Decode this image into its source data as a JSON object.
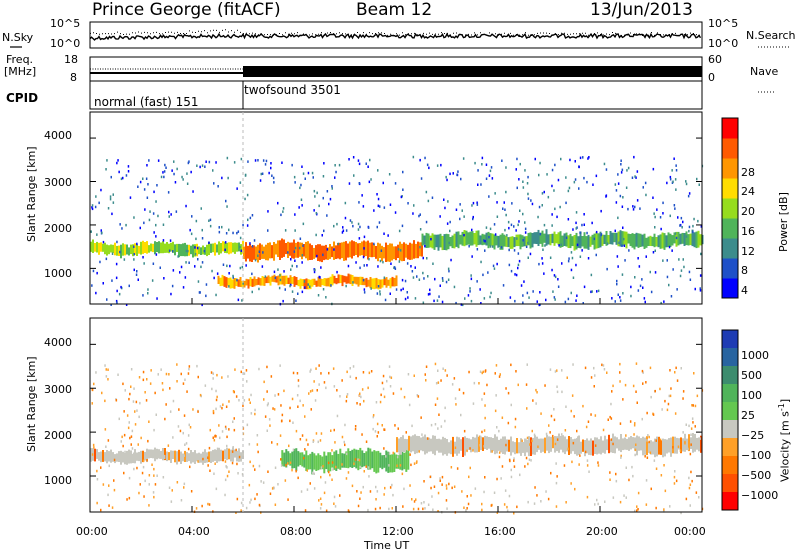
{
  "header": {
    "station": "Prince George (fitACF)",
    "beam": "Beam 12",
    "date": "13/Jun/2013"
  },
  "noise_panel": {
    "left_label": "N.Sky",
    "right_label": "N.Search",
    "left_ticks": [
      "10^5",
      "10^0"
    ],
    "right_ticks": [
      "10^5",
      "10^0"
    ]
  },
  "freq_panel": {
    "left_label": "Freq.",
    "left_unit": "[MHz]",
    "left_ticks": [
      "18",
      "8"
    ],
    "right_label": "Nave",
    "right_ticks": [
      "60",
      "0"
    ]
  },
  "cpid": {
    "label": "CPID",
    "segments": [
      {
        "name": "normal (fast) 151",
        "start_hour": 0,
        "end_hour": 6
      },
      {
        "name": "twofsound 3501",
        "start_hour": 6,
        "end_hour": 24
      }
    ]
  },
  "chart_data": [
    {
      "type": "heatmap",
      "name": "power",
      "ylabel": "Slant Range [km]",
      "ylim": [
        180,
        4600
      ],
      "yticks": [
        1000,
        2000,
        3000,
        4000
      ],
      "xlim": [
        0,
        24
      ],
      "colorbar": {
        "label": "Power [dB]",
        "ticks": [
          4,
          8,
          12,
          16,
          20,
          24,
          28
        ],
        "range": [
          0,
          32
        ],
        "colors": [
          "#0000ff",
          "#1e50c8",
          "#3c8c8c",
          "#50b45a",
          "#96dc1e",
          "#ffdc00",
          "#ff9600",
          "#ff5a00",
          "#ff0000"
        ]
      },
      "echo_bands": [
        {
          "start_hour": 0,
          "end_hour": 6,
          "range_center_km": 1450,
          "range_width_km": 250,
          "power_db": 18
        },
        {
          "start_hour": 6,
          "end_hour": 13,
          "range_center_km": 1400,
          "range_width_km": 350,
          "power_db": 28
        },
        {
          "start_hour": 5,
          "end_hour": 12,
          "range_center_km": 700,
          "range_width_km": 200,
          "power_db": 26
        },
        {
          "start_hour": 13,
          "end_hour": 24,
          "range_center_km": 1650,
          "range_width_km": 300,
          "power_db": 14
        }
      ]
    },
    {
      "type": "heatmap",
      "name": "velocity",
      "ylabel": "Slant Range [km]",
      "ylim": [
        180,
        4600
      ],
      "yticks": [
        1000,
        2000,
        3000,
        4000
      ],
      "xlim": [
        0,
        24
      ],
      "xticks": [
        "00:00",
        "04:00",
        "08:00",
        "12:00",
        "16:00",
        "20:00",
        "00:00"
      ],
      "xlabel": "Time UT",
      "colorbar": {
        "label": "Velocity",
        "unit": "[m s",
        "unit_superscript": "-1",
        "unit_close": "]",
        "ticks": [
          "1000",
          "500",
          "100",
          "25",
          "−25",
          "−100",
          "−500",
          "−1000"
        ],
        "colors": [
          "#1e3cb4",
          "#2864a0",
          "#3c8c6e",
          "#50b45a",
          "#64c850",
          "#c8c8c0",
          "#ffa028",
          "#ff7800",
          "#ff5000",
          "#ff0000"
        ]
      },
      "echo_bands": [
        {
          "start_hour": 0,
          "end_hour": 6,
          "range_center_km": 1450,
          "range_width_km": 250,
          "velocity_ms": 0
        },
        {
          "start_hour": 7.5,
          "end_hour": 12.5,
          "range_center_km": 1350,
          "range_width_km": 400,
          "velocity_ms": 150
        },
        {
          "start_hour": 12,
          "end_hour": 24,
          "range_center_km": 1700,
          "range_width_km": 350,
          "velocity_ms": 0
        }
      ]
    }
  ]
}
